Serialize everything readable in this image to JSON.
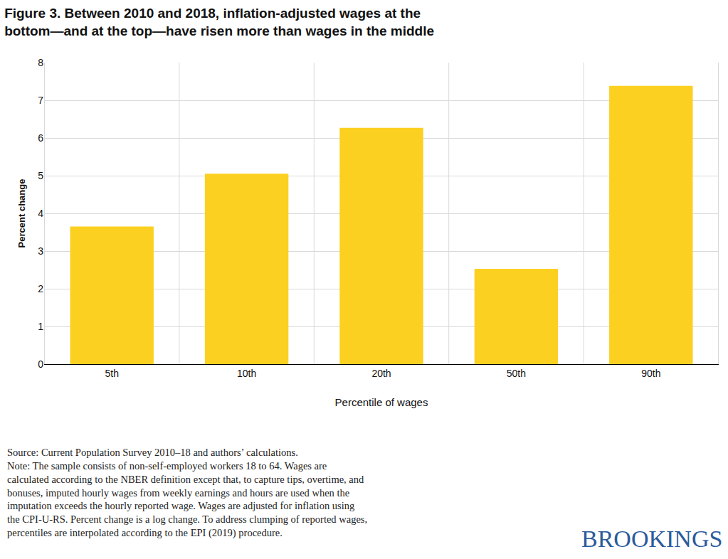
{
  "chart_data": {
    "type": "bar",
    "title": "Figure 3. Between 2010 and 2018, inflation-adjusted wages at the\nbottom—and at the top—have risen more than wages in the middle",
    "x_label": "Percentile of wages",
    "y_label": "Percent change",
    "categories": [
      "5th",
      "10th",
      "20th",
      "50th",
      "90th"
    ],
    "values": [
      3.65,
      5.05,
      6.27,
      2.53,
      7.38
    ],
    "color": "#fcd020",
    "ylim": [
      0,
      8
    ],
    "yticks": [
      0,
      1,
      2,
      3,
      4,
      5,
      6,
      7,
      8
    ],
    "grid": true,
    "source": "Source: Current Population Survey 2010–18 and authors’ calculations.",
    "note": "Note: The sample consists of non-self-employed workers 18 to 64. Wages are\ncalculated according to the NBER definition except that, to capture tips, overtime, and\nbonuses, imputed hourly wages from weekly earnings and hours are used when the\nimputation exceeds the hourly reported wage. Wages are adjusted for inflation using\nthe CPI-U-RS. Percent change is a log change. To address clumping of reported wages,\npercentiles are interpolated according to the EPI (2019) procedure.",
    "logo": "BROOKINGS"
  }
}
